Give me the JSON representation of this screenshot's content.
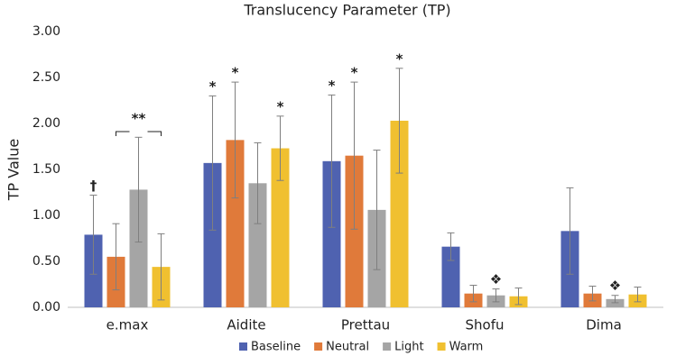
{
  "chart_data": {
    "type": "bar",
    "title": "Translucency Parameter (TP)",
    "y_label": "TP Value",
    "categories": [
      "e.max",
      "Aidite",
      "Prettau",
      "Shofu",
      "Dima"
    ],
    "series": [
      {
        "name": "Baseline",
        "color": "#4f62b0",
        "values": [
          0.79,
          1.57,
          1.59,
          0.66,
          0.83
        ],
        "errors": [
          0.43,
          0.73,
          0.72,
          0.15,
          0.47
        ],
        "symbols": [
          "†",
          "*",
          "*",
          null,
          null
        ]
      },
      {
        "name": "Neutral",
        "color": "#e07a3a",
        "values": [
          0.55,
          1.82,
          1.65,
          0.15,
          0.15
        ],
        "errors": [
          0.36,
          0.63,
          0.8,
          0.09,
          0.08
        ],
        "symbols": [
          null,
          "*",
          "*",
          null,
          null
        ]
      },
      {
        "name": "Light",
        "color": "#a5a5a5",
        "values": [
          1.28,
          1.35,
          1.06,
          0.13,
          0.09
        ],
        "errors": [
          0.57,
          0.44,
          0.65,
          0.07,
          0.04
        ],
        "symbols": [
          null,
          null,
          null,
          "❖",
          "❖"
        ]
      },
      {
        "name": "Warm",
        "color": "#f0c030",
        "values": [
          0.44,
          1.73,
          2.03,
          0.12,
          0.14
        ],
        "errors": [
          0.36,
          0.35,
          0.57,
          0.09,
          0.08
        ],
        "symbols": [
          null,
          "*",
          "*",
          null,
          null
        ]
      }
    ],
    "bracket_label": "**",
    "ylim": [
      0,
      3
    ],
    "yticks": [
      {
        "value": 0,
        "label": "0.00"
      },
      {
        "value": 0.5,
        "label": "0.50"
      },
      {
        "value": 1,
        "label": "1.00"
      },
      {
        "value": 1.5,
        "label": "1.50"
      },
      {
        "value": 2,
        "label": "2.00"
      },
      {
        "value": 2.5,
        "label": "2.50"
      },
      {
        "value": 3,
        "label": "3.00"
      }
    ],
    "grid": false,
    "legend": "bottom"
  }
}
